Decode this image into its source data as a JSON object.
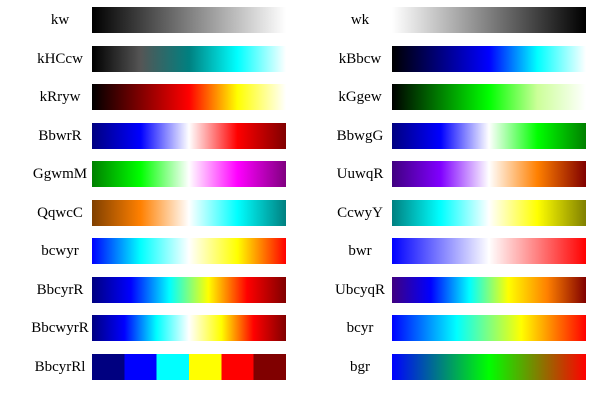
{
  "colormaps": [
    {
      "name": "kw",
      "stops": [
        "#000000",
        "#ffffff"
      ]
    },
    {
      "name": "wk",
      "stops": [
        "#ffffff",
        "#000000"
      ]
    },
    {
      "name": "kHCcw",
      "stops": [
        "#000000",
        "#555555",
        "#008080",
        "#00ffff",
        "#ffffff"
      ]
    },
    {
      "name": "kBbcw",
      "stops": [
        "#000000",
        "#000080",
        "#0000ff",
        "#00ffff",
        "#ffffff"
      ]
    },
    {
      "name": "kRryw",
      "stops": [
        "#000000",
        "#800000",
        "#ff0000",
        "#ffff00",
        "#ffffff"
      ]
    },
    {
      "name": "kGgew",
      "stops": [
        "#000000",
        "#008000",
        "#00ff00",
        "#ccff99",
        "#ffffff"
      ]
    },
    {
      "name": "BbwrR",
      "stops": [
        "#000080",
        "#0000ff",
        "#ffffff",
        "#ff0000",
        "#800000"
      ]
    },
    {
      "name": "BbwgG",
      "stops": [
        "#000080",
        "#0000ff",
        "#ffffff",
        "#00ff00",
        "#008000"
      ]
    },
    {
      "name": "GgwmM",
      "stops": [
        "#008000",
        "#00ff00",
        "#ffffff",
        "#ff00ff",
        "#800080"
      ]
    },
    {
      "name": "UuwqR",
      "stops": [
        "#400080",
        "#8000ff",
        "#ffffff",
        "#ff8000",
        "#800000"
      ]
    },
    {
      "name": "QqwcC",
      "stops": [
        "#804000",
        "#ff8000",
        "#ffffff",
        "#00ffff",
        "#008080"
      ]
    },
    {
      "name": "CcwyY",
      "stops": [
        "#008080",
        "#00ffff",
        "#ffffff",
        "#ffff00",
        "#808000"
      ]
    },
    {
      "name": "bcwyr",
      "stops": [
        "#0000ff",
        "#00ffff",
        "#ffffff",
        "#ffff00",
        "#ff0000"
      ]
    },
    {
      "name": "bwr",
      "stops": [
        "#0000ff",
        "#ffffff",
        "#ff0000"
      ]
    },
    {
      "name": "BbcyrR",
      "stops": [
        "#000080",
        "#0000ff",
        "#00ffff",
        "#ffff00",
        "#ff0000",
        "#800000"
      ]
    },
    {
      "name": "UbcyqR",
      "stops": [
        "#400080",
        "#0000ff",
        "#00ffff",
        "#ffff00",
        "#ff8000",
        "#800000"
      ]
    },
    {
      "name": "BbcwyrR",
      "stops": [
        "#000080",
        "#0000ff",
        "#00ffff",
        "#ffffff",
        "#ffff00",
        "#ff0000",
        "#800000"
      ]
    },
    {
      "name": "bcyr",
      "stops": [
        "#0000ff",
        "#00ffff",
        "#ffff00",
        "#ff0000"
      ]
    },
    {
      "name": "BbcyrRl",
      "stops": [
        "#000080",
        "#0000ff",
        "#00ffff",
        "#ffff00",
        "#ff0000",
        "#800000"
      ],
      "discrete": true
    },
    {
      "name": "bgr",
      "stops": [
        "#0000ff",
        "#00ff00",
        "#ff0000"
      ]
    }
  ]
}
